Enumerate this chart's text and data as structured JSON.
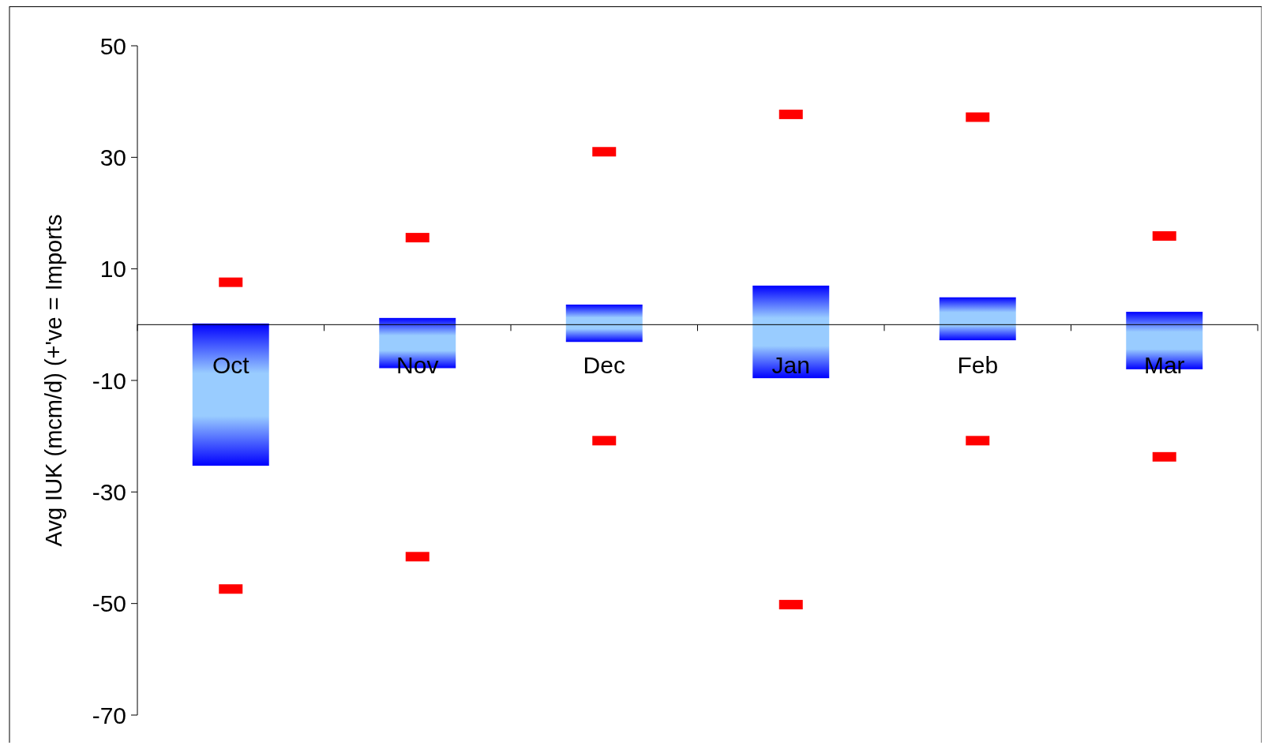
{
  "chart_data": {
    "type": "bar",
    "ylabel": "Avg IUK (mcm/d) (+'ve = Imports",
    "categories": [
      "Oct",
      "Nov",
      "Dec",
      "Jan",
      "Feb",
      "Mar"
    ],
    "ylim": [
      -70,
      50
    ],
    "yticks": [
      -70,
      -50,
      -30,
      -10,
      10,
      30,
      50
    ],
    "series": [
      {
        "color": "#0000ff",
        "base": [
          -25.3,
          -7.8,
          -3.1,
          -9.6,
          -2.8,
          -8.0
        ],
        "values": [
          25.5,
          9.0,
          6.7,
          16.6,
          7.7,
          10.3
        ]
      },
      {
        "type": "scatter",
        "color": "#ff0000",
        "values": [
          7.6,
          15.6,
          31.0,
          37.7,
          37.2,
          15.9
        ]
      },
      {
        "type": "scatter",
        "color": "#ff0000",
        "values": [
          -47.4,
          -41.6,
          -20.8,
          -50.2,
          -20.8,
          -23.7
        ]
      }
    ]
  }
}
